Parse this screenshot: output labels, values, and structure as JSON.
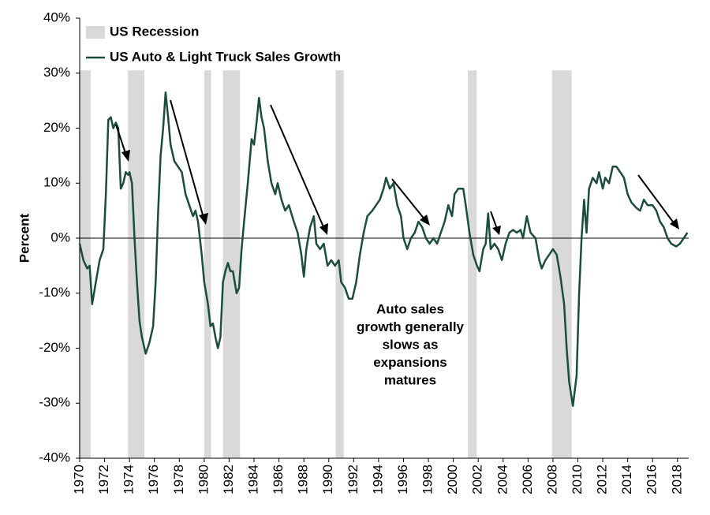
{
  "chart_data": {
    "type": "line",
    "y_label": "Percent",
    "xlim": [
      1970,
      2018.9
    ],
    "xticks": [
      1970,
      1972,
      1974,
      1976,
      1978,
      1980,
      1982,
      1984,
      1986,
      1988,
      1990,
      1992,
      1994,
      1996,
      1998,
      2000,
      2002,
      2004,
      2006,
      2008,
      2010,
      2012,
      2014,
      2016,
      2018
    ],
    "ylim": [
      -40,
      40
    ],
    "yticks": [
      {
        "value": -40,
        "label": "-40%"
      },
      {
        "value": -30,
        "label": "-30%"
      },
      {
        "value": -20,
        "label": "-20%"
      },
      {
        "value": -10,
        "label": "-10%"
      },
      {
        "value": 0,
        "label": "0%"
      },
      {
        "value": 10,
        "label": "10%"
      },
      {
        "value": 20,
        "label": "20%"
      },
      {
        "value": 30,
        "label": "30%"
      },
      {
        "value": 40,
        "label": "40%"
      }
    ],
    "grid": false,
    "recessions": {
      "name": "US Recession",
      "color": "#d9d9d9",
      "band_range": [
        -40,
        30.5
      ],
      "periods": [
        [
          1969.92,
          1970.88
        ],
        [
          1973.88,
          1975.2
        ],
        [
          1980.0,
          1980.55
        ],
        [
          1981.5,
          1982.88
        ],
        [
          1990.55,
          1991.2
        ],
        [
          2001.17,
          2001.88
        ],
        [
          2007.92,
          2009.5
        ]
      ]
    },
    "annotation": [
      "Auto sales",
      "growth generally",
      "slows as",
      "expansions",
      "matures"
    ],
    "series": [
      {
        "name": "US Auto & Light Truck Sales Growth",
        "color": "#1b4d3e",
        "x": [
          1970.0,
          1970.3,
          1970.6,
          1970.8,
          1971.0,
          1971.3,
          1971.6,
          1971.9,
          1972.1,
          1972.3,
          1972.5,
          1972.7,
          1972.9,
          1973.1,
          1973.3,
          1973.5,
          1973.7,
          1973.9,
          1974.0,
          1974.2,
          1974.4,
          1974.6,
          1974.8,
          1975.0,
          1975.3,
          1975.6,
          1975.9,
          1976.1,
          1976.3,
          1976.5,
          1976.7,
          1976.9,
          1977.1,
          1977.3,
          1977.6,
          1977.9,
          1978.2,
          1978.5,
          1978.8,
          1979.1,
          1979.3,
          1979.5,
          1979.8,
          1980.0,
          1980.3,
          1980.5,
          1980.7,
          1980.9,
          1981.1,
          1981.3,
          1981.5,
          1981.7,
          1981.9,
          1982.1,
          1982.3,
          1982.6,
          1982.8,
          1983.0,
          1983.2,
          1983.5,
          1983.8,
          1984.0,
          1984.2,
          1984.4,
          1984.6,
          1984.8,
          1985.1,
          1985.4,
          1985.7,
          1985.9,
          1986.2,
          1986.5,
          1986.8,
          1987.2,
          1987.5,
          1987.8,
          1988.0,
          1988.2,
          1988.5,
          1988.8,
          1989.0,
          1989.3,
          1989.6,
          1989.9,
          1990.2,
          1990.5,
          1990.8,
          1991.0,
          1991.3,
          1991.6,
          1991.9,
          1992.2,
          1992.5,
          1992.8,
          1993.1,
          1993.5,
          1993.8,
          1994.1,
          1994.4,
          1994.6,
          1994.9,
          1995.2,
          1995.5,
          1995.8,
          1996.0,
          1996.3,
          1996.6,
          1996.9,
          1997.2,
          1997.5,
          1997.8,
          1998.1,
          1998.4,
          1998.7,
          1999.0,
          1999.3,
          1999.6,
          1999.9,
          2000.1,
          2000.4,
          2000.8,
          2001.0,
          2001.3,
          2001.6,
          2001.9,
          2002.1,
          2002.4,
          2002.6,
          2002.8,
          2003.0,
          2003.3,
          2003.6,
          2003.9,
          2004.2,
          2004.5,
          2004.8,
          2005.1,
          2005.4,
          2005.6,
          2005.9,
          2006.2,
          2006.6,
          2006.9,
          2007.1,
          2007.4,
          2007.7,
          2008.0,
          2008.3,
          2008.6,
          2008.9,
          2009.1,
          2009.3,
          2009.6,
          2009.9,
          2010.1,
          2010.3,
          2010.5,
          2010.7,
          2010.9,
          2011.2,
          2011.5,
          2011.7,
          2012.0,
          2012.2,
          2012.5,
          2012.8,
          2013.1,
          2013.4,
          2013.7,
          2014.0,
          2014.3,
          2014.7,
          2015.0,
          2015.3,
          2015.6,
          2016.0,
          2016.3,
          2016.6,
          2016.9,
          2017.2,
          2017.5,
          2017.9,
          2018.2,
          2018.5,
          2018.8
        ],
        "values": [
          -1,
          -4,
          -5.5,
          -5,
          -12,
          -8,
          -4,
          -2,
          8,
          21.5,
          22,
          20,
          21,
          20,
          9,
          10,
          12,
          11.5,
          12,
          10,
          0,
          -8,
          -15,
          -18,
          -21,
          -19,
          -16,
          -8,
          5,
          15,
          20,
          26.5,
          22,
          17,
          14,
          13,
          12,
          8,
          6,
          4,
          5,
          3,
          -3,
          -8,
          -12,
          -16,
          -15.5,
          -18,
          -20,
          -18,
          -8,
          -6,
          -4.5,
          -6,
          -6,
          -10,
          -9,
          -2,
          3,
          10,
          18,
          17,
          21,
          25.5,
          22,
          20,
          14,
          10,
          8,
          10,
          7,
          5,
          6,
          3,
          1,
          -3,
          -7,
          -2,
          2,
          4,
          -1,
          -2,
          -1,
          -5,
          -4,
          -5,
          -4,
          -8,
          -9,
          -11,
          -11,
          -8,
          -3,
          1,
          4,
          5,
          6,
          7,
          9,
          11,
          9,
          10,
          6,
          4,
          0,
          -2,
          0,
          1,
          3,
          2,
          0,
          -1,
          0,
          -1,
          1,
          3,
          6,
          4,
          8,
          9,
          9,
          6,
          1,
          -3,
          -5,
          -6,
          -2,
          -1,
          4.5,
          -2,
          -1,
          -2,
          -4,
          -1,
          1,
          1.5,
          1,
          1.5,
          0,
          4,
          1,
          0,
          -4,
          -5.5,
          -4,
          -3,
          -2,
          -3,
          -7,
          -12,
          -20,
          -26,
          -30.5,
          -25,
          -10,
          0,
          7,
          1,
          9,
          11,
          10,
          12,
          9,
          11,
          10,
          13,
          13,
          12,
          11,
          8,
          6.5,
          5.5,
          5,
          7,
          6,
          6,
          5,
          3,
          2,
          0,
          -1,
          -1.5,
          -1,
          0,
          1
        ]
      }
    ]
  }
}
